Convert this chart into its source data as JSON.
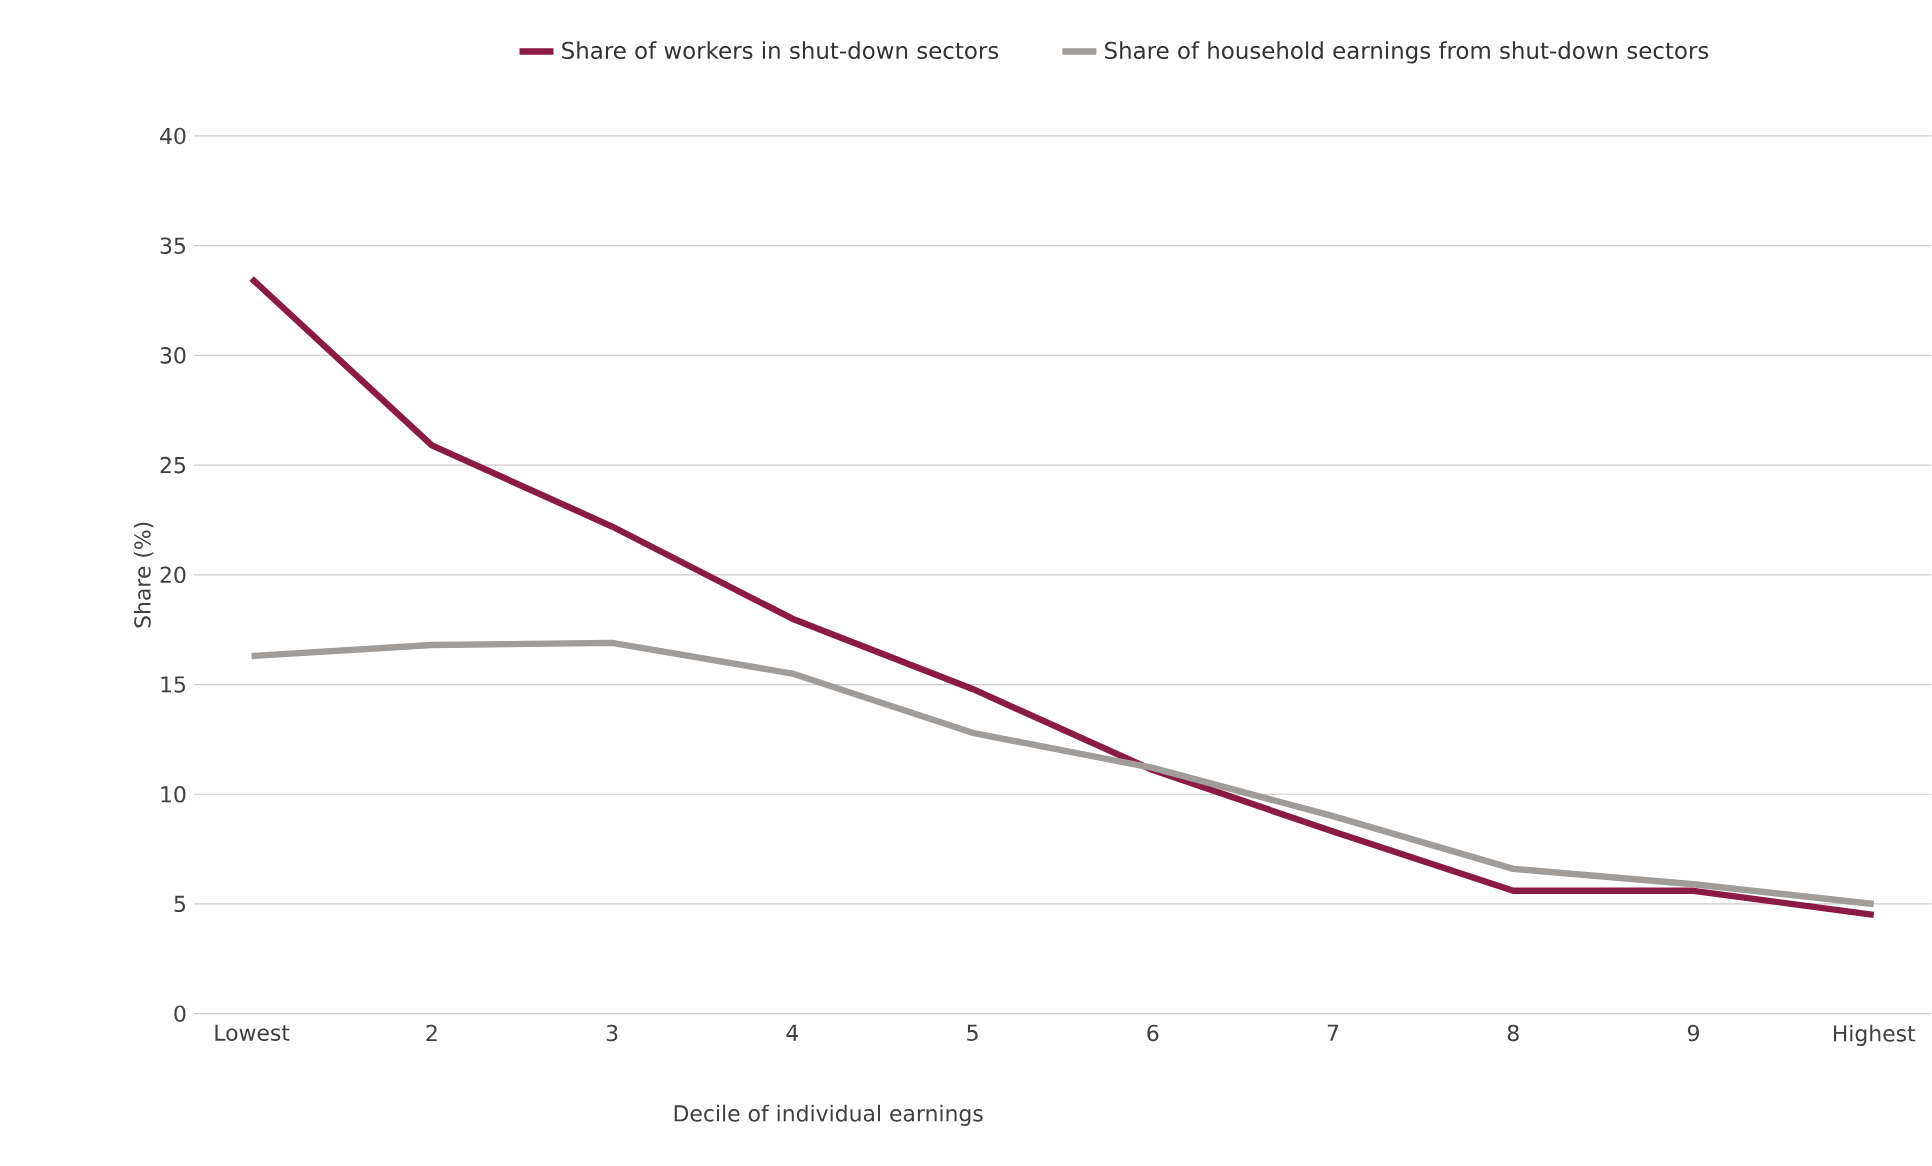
{
  "chart_data": {
    "type": "line",
    "xlabel": "Decile of individual earnings",
    "ylabel": "Share (%)",
    "categories": [
      "Lowest",
      "2",
      "3",
      "4",
      "5",
      "6",
      "7",
      "8",
      "9",
      "Highest"
    ],
    "series": [
      {
        "name": "Share of workers in shut-down sectors",
        "color": "#8b1a45",
        "values": [
          33.5,
          25.9,
          22.2,
          18.0,
          14.8,
          11.1,
          8.3,
          5.6,
          5.6,
          4.5
        ]
      },
      {
        "name": "Share of household earnings from shut-down sectors",
        "color": "#a09c9a",
        "values": [
          16.3,
          16.8,
          16.9,
          15.5,
          12.8,
          11.2,
          9.0,
          6.6,
          5.9,
          5.0
        ]
      }
    ],
    "ylim": [
      0,
      40
    ],
    "yticks": [
      0,
      5,
      10,
      15,
      20,
      25,
      30,
      35,
      40
    ],
    "grid": "y",
    "legend": "top",
    "marker": "none",
    "line_style": "solid"
  }
}
